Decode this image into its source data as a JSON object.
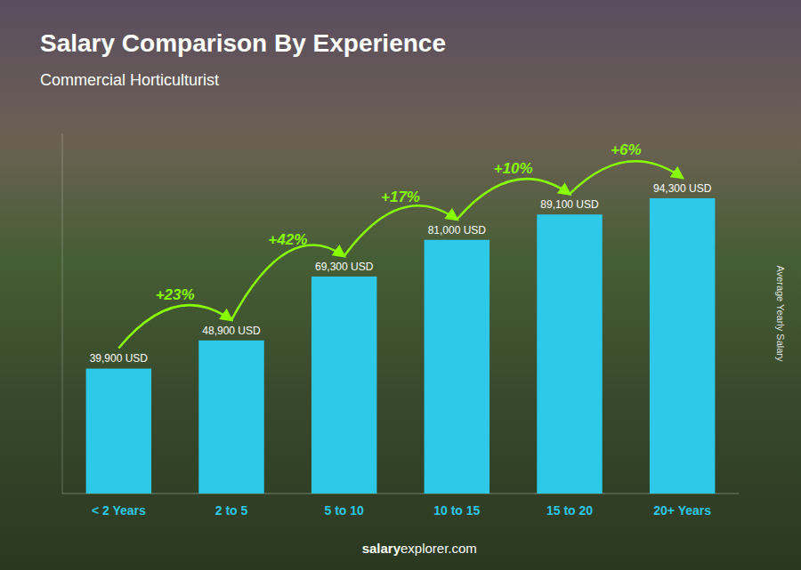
{
  "chart_data": {
    "type": "bar",
    "title": "Salary Comparison By Experience",
    "subtitle": "Commercial Horticulturist",
    "y_label": "Average Yearly Salary",
    "categories": [
      "< 2 Years",
      "2 to 5",
      "5 to 10",
      "10 to 15",
      "15 to 20",
      "20+ Years"
    ],
    "values": [
      39900,
      48900,
      69300,
      81000,
      89100,
      94300
    ],
    "value_labels": [
      "39,900 USD",
      "48,900 USD",
      "69,300 USD",
      "81,000 USD",
      "89,100 USD",
      "94,300 USD"
    ],
    "data_labels": true,
    "annotations": [
      "+23%",
      "+42%",
      "+17%",
      "+10%",
      "+6%"
    ],
    "footer": [
      "salary",
      "explorer.com"
    ],
    "color": "#2ec8e8",
    "ylim": [
      0,
      115000
    ],
    "tick_labels": "x",
    "grid": false
  }
}
